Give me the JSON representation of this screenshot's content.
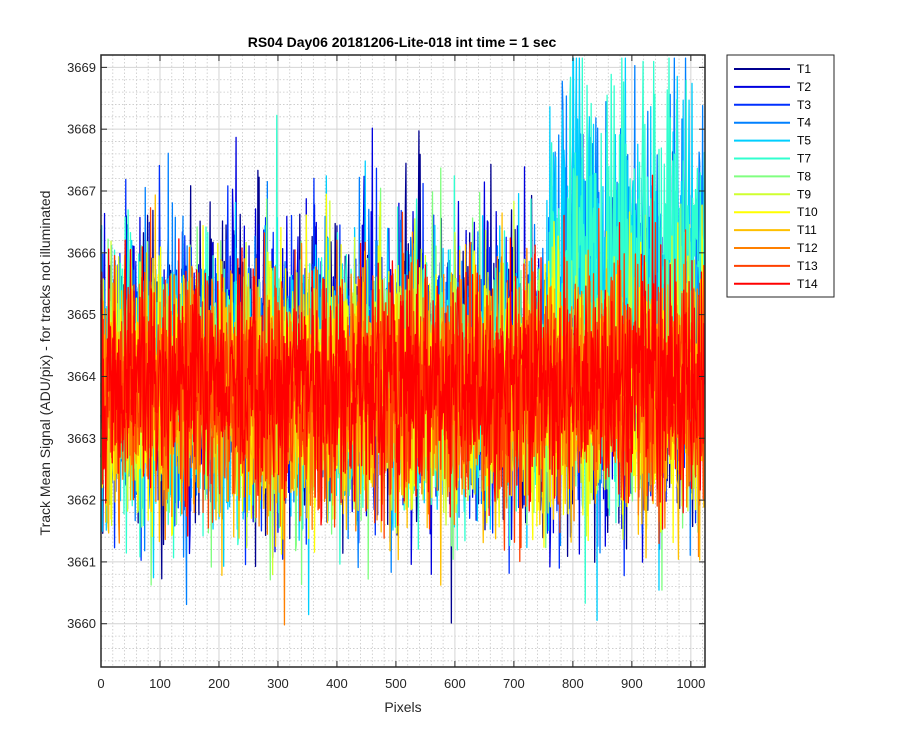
{
  "chart_data": {
    "type": "line",
    "title": "RS04 Day06 20181206-Lite-018 int time = 1 sec",
    "xlabel": "Pixels",
    "ylabel": "Track Mean Signal (ADU/pix) - for tracks not illuminated",
    "xlim": [
      0,
      1024
    ],
    "ylim": [
      3659.3,
      3669.2
    ],
    "xticks": [
      0,
      100,
      200,
      300,
      400,
      500,
      600,
      700,
      800,
      900,
      1000
    ],
    "yticks": [
      3660,
      3661,
      3662,
      3663,
      3664,
      3665,
      3666,
      3667,
      3668,
      3669
    ],
    "grid": true,
    "minor_grid": true,
    "legend_position": "outside-top-right",
    "series": [
      {
        "name": "T1",
        "color": "#00008f",
        "mean": 3664.0,
        "spread": 1.15,
        "high_right": false,
        "seed": 11
      },
      {
        "name": "T2",
        "color": "#0000df",
        "mean": 3664.1,
        "spread": 1.15,
        "high_right": false,
        "seed": 23
      },
      {
        "name": "T3",
        "color": "#0030ff",
        "mean": 3664.0,
        "spread": 1.1,
        "high_right": false,
        "seed": 37
      },
      {
        "name": "T4",
        "color": "#0080ff",
        "mean": 3664.0,
        "spread": 1.1,
        "high_right": true,
        "seed": 41
      },
      {
        "name": "T5",
        "color": "#00cfff",
        "mean": 3663.9,
        "spread": 1.1,
        "high_right": true,
        "seed": 53
      },
      {
        "name": "T7",
        "color": "#30ffcf",
        "mean": 3663.9,
        "spread": 1.05,
        "high_right": true,
        "seed": 67
      },
      {
        "name": "T8",
        "color": "#80ff80",
        "mean": 3663.8,
        "spread": 1.05,
        "high_right": false,
        "seed": 71
      },
      {
        "name": "T9",
        "color": "#cfff30",
        "mean": 3663.8,
        "spread": 1.05,
        "high_right": false,
        "seed": 83
      },
      {
        "name": "T10",
        "color": "#ffff00",
        "mean": 3663.7,
        "spread": 1.0,
        "high_right": false,
        "seed": 97
      },
      {
        "name": "T11",
        "color": "#ffc000",
        "mean": 3663.7,
        "spread": 1.0,
        "high_right": false,
        "seed": 101
      },
      {
        "name": "T12",
        "color": "#ff8000",
        "mean": 3663.8,
        "spread": 0.95,
        "high_right": false,
        "seed": 113
      },
      {
        "name": "T13",
        "color": "#ff4000",
        "mean": 3663.9,
        "spread": 0.95,
        "high_right": false,
        "seed": 127
      },
      {
        "name": "T14",
        "color": "#ff0000",
        "mean": 3663.9,
        "spread": 0.9,
        "high_right": false,
        "seed": 131
      }
    ]
  }
}
